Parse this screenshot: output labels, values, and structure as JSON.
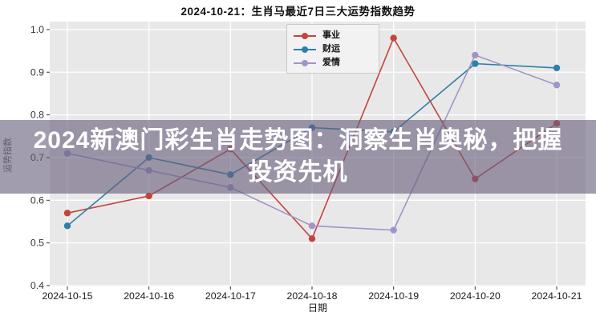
{
  "page": {
    "title": "2024-10-21：生肖马最近7日三大运势指数趋势"
  },
  "overlay": {
    "line1": "2024新澳门彩生肖走势图：洞察生肖奥秘，把握",
    "line2": "投资先机",
    "bg_color": "rgba(104,95,125,0.62)",
    "text_color": "#ffffff"
  },
  "chart_data": {
    "type": "line",
    "title": "2024-10-21：生肖马最近7日三大运势指数趋势",
    "xlabel": "日期",
    "ylabel": "运势指数",
    "categories": [
      "2024-10-15",
      "2024-10-16",
      "2024-10-17",
      "2024-10-18",
      "2024-10-19",
      "2024-10-20",
      "2024-10-21"
    ],
    "y_ticks": [
      "1.0",
      "0.9",
      "0.8",
      "0.7",
      "0.6",
      "0.5",
      "0.4"
    ],
    "y_tick_values": [
      1.0,
      0.9,
      0.8,
      0.7,
      0.6,
      0.5,
      0.4
    ],
    "ylim": [
      0.4,
      1.0
    ],
    "grid": true,
    "plot_bg": "#e9e8e8",
    "grid_color": "#ffffff",
    "tick_color": "#333333",
    "legend_position": "top-center",
    "series": [
      {
        "name": "事业",
        "color": "#c4443e",
        "values": [
          0.57,
          0.61,
          0.72,
          0.51,
          0.98,
          0.65,
          0.78
        ]
      },
      {
        "name": "财运",
        "color": "#2e80a8",
        "values": [
          0.54,
          0.7,
          0.66,
          0.77,
          0.76,
          0.92,
          0.91
        ]
      },
      {
        "name": "爱情",
        "color": "#a095ca",
        "values": [
          0.71,
          0.67,
          0.63,
          0.54,
          0.53,
          0.94,
          0.87
        ]
      }
    ]
  }
}
